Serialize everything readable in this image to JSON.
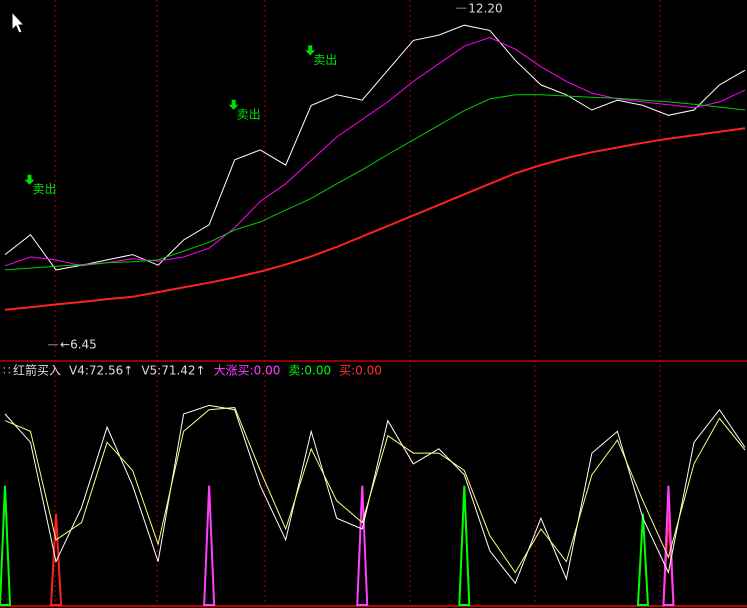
{
  "chart_data": [
    {
      "type": "line",
      "categories": [
        null,
        null,
        null,
        null,
        null,
        null,
        null,
        null,
        null,
        null,
        null,
        null,
        null,
        null,
        null,
        null,
        null,
        null,
        null,
        null,
        null,
        null,
        null,
        null,
        null,
        null,
        null,
        null,
        null,
        null
      ],
      "ylim": [
        6.19,
        12.34
      ],
      "series": [
        {
          "color": "#ffffff",
          "values": [
            7.99,
            8.33,
            7.73,
            7.81,
            7.9,
            7.99,
            7.81,
            8.24,
            8.5,
            9.61,
            9.78,
            9.52,
            10.54,
            10.72,
            10.63,
            11.14,
            11.65,
            11.74,
            11.91,
            11.82,
            11.31,
            10.89,
            10.72,
            10.46,
            10.63,
            10.54,
            10.37,
            10.46,
            10.89,
            11.14
          ]
        },
        {
          "color": "#ff00ff",
          "values": [
            7.8,
            7.95,
            7.9,
            7.8,
            7.85,
            7.92,
            7.88,
            7.95,
            8.1,
            8.45,
            8.9,
            9.2,
            9.6,
            10.0,
            10.3,
            10.6,
            10.95,
            11.25,
            11.55,
            11.7,
            11.5,
            11.2,
            10.95,
            10.75,
            10.65,
            10.6,
            10.55,
            10.5,
            10.6,
            10.8
          ]
        },
        {
          "color": "#00cc00",
          "values": [
            7.73,
            7.76,
            7.79,
            7.82,
            7.85,
            7.87,
            7.9,
            8.05,
            8.2,
            8.41,
            8.55,
            8.75,
            8.95,
            9.2,
            9.44,
            9.7,
            9.95,
            10.2,
            10.45,
            10.65,
            10.72,
            10.72,
            10.7,
            10.68,
            10.66,
            10.63,
            10.6,
            10.56,
            10.51,
            10.46
          ]
        },
        {
          "color": "#ff2020",
          "values": [
            7.05,
            7.09,
            7.14,
            7.18,
            7.23,
            7.27,
            7.35,
            7.43,
            7.51,
            7.6,
            7.7,
            7.82,
            7.96,
            8.12,
            8.3,
            8.48,
            8.66,
            8.84,
            9.02,
            9.2,
            9.38,
            9.52,
            9.64,
            9.74,
            9.82,
            9.9,
            9.97,
            10.03,
            10.09,
            10.15
          ]
        }
      ],
      "annotations": [
        {
          "value": 12.2,
          "label": "12.20",
          "index": 18
        },
        {
          "value": 6.45,
          "label": "←6.45",
          "index": 2
        }
      ],
      "sell_signals": {
        "label": "卖出",
        "indices": [
          1,
          9,
          12
        ]
      }
    },
    {
      "type": "line",
      "title": "红箭买入",
      "categories": [
        null,
        null,
        null,
        null,
        null,
        null,
        null,
        null,
        null,
        null,
        null,
        null,
        null,
        null,
        null,
        null,
        null,
        null,
        null,
        null,
        null,
        null,
        null,
        null,
        null,
        null,
        null,
        null,
        null,
        null
      ],
      "ylim": [
        0,
        100
      ],
      "series": [
        {
          "name": "V4:72.56↑",
          "color": "#ffffff",
          "values": [
            88,
            75,
            20,
            45,
            82,
            55,
            20,
            88,
            92,
            90,
            55,
            30,
            80,
            40,
            35,
            85,
            65,
            72,
            60,
            25,
            10,
            40,
            12,
            70,
            80,
            40,
            15,
            75,
            90,
            72.56
          ]
        },
        {
          "name": "V5:71.42↑",
          "color": "#ffff80",
          "values": [
            85,
            80,
            30,
            38,
            75,
            62,
            28,
            80,
            90,
            91,
            62,
            35,
            72,
            48,
            38,
            78,
            70,
            70,
            62,
            32,
            15,
            35,
            20,
            60,
            76,
            48,
            22,
            65,
            86,
            71.42
          ]
        }
      ],
      "legend_extra": [
        {
          "label": "大涨买:0.00",
          "color": "#ff40ff"
        },
        {
          "label": "卖:0.00",
          "color": "#00ff00"
        },
        {
          "label": "买:0.00",
          "color": "#ff3030"
        }
      ],
      "signals": [
        {
          "color": "#00ff00",
          "index": 0,
          "value": 55
        },
        {
          "color": "#ff2020",
          "index": 2,
          "value": 42
        },
        {
          "color": "#ff40ff",
          "index": 8,
          "value": 55
        },
        {
          "color": "#ff40ff",
          "index": 14,
          "value": 55
        },
        {
          "color": "#00ff00",
          "index": 18,
          "value": 55
        },
        {
          "color": "#00ff00",
          "index": 25,
          "value": 42
        },
        {
          "color": "#ff2020",
          "index": 26,
          "value": 42
        },
        {
          "color": "#ff40ff",
          "index": 26,
          "value": 55
        }
      ]
    }
  ]
}
